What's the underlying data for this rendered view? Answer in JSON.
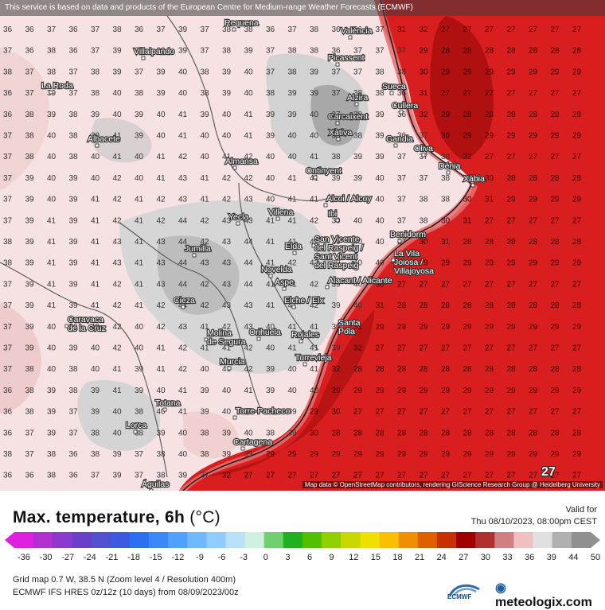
{
  "header": {
    "disclaimer": "This service is based on data and products of the European Centre for Medium-range Weather Forecasts (ECMWF)"
  },
  "map": {
    "credit": "Map data © OpenStreetMap contributors, rendering GIScience Research Group @ Heidelberg University",
    "marker_value": "27",
    "cities": [
      "Requena",
      "València",
      "Villalpando",
      "Picassent",
      "La Roda",
      "Sueca",
      "Alzira",
      "Cullera",
      "Carcaixent",
      "Albacete",
      "Xàtiva",
      "Gandia",
      "Oliva",
      "Almansa",
      "Ontinyent",
      "Dénia",
      "Xàbia",
      "Alcoi / Alcoy",
      "Ibi",
      "Yecla",
      "Villena",
      "Benidorm",
      "Jumilla",
      "Elda",
      "San Vicente del Raspeig / Sant Vicent del Raspeig",
      "La Vila Joiosa / Villajoyosa",
      "Novelda",
      "Aspe",
      "Alacant / Alicante",
      "Cieza",
      "Elche / Elx",
      "Caravaca de la Cruz",
      "Santa Pola",
      "Molina de Segura",
      "Orihuela",
      "Rojales",
      "Torrevieja",
      "Murcia",
      "Totana",
      "Torre-Pacheco",
      "Lorca",
      "Cartagena",
      "Águilas"
    ]
  },
  "legend": {
    "title": "Max. temperature, 6h",
    "unit": "(°C)",
    "valid_label": "Valid for",
    "valid_date": "Thu 08/10/2023, 08:00pm CEST",
    "scale_ticks": [
      "-36",
      "-30",
      "-27",
      "-24",
      "-21",
      "-18",
      "-15",
      "-12",
      "-9",
      "-6",
      "-3",
      "0",
      "3",
      "6",
      "9",
      "12",
      "15",
      "18",
      "21",
      "24",
      "27",
      "30",
      "33",
      "36",
      "39",
      "44",
      "50"
    ],
    "scale_colors": [
      "#e020e0",
      "#b030d0",
      "#8a3ad0",
      "#6a40c8",
      "#5050d0",
      "#3a5ae0",
      "#2a70f0",
      "#3a88f8",
      "#50a0ff",
      "#70b8ff",
      "#90ccff",
      "#b8e0f8",
      "#d0f0e0",
      "#70d070",
      "#20b020",
      "#50c000",
      "#90d000",
      "#c8d800",
      "#f0e000",
      "#f8c000",
      "#f09000",
      "#e06000",
      "#c83000",
      "#a00000",
      "#b03030",
      "#d08080",
      "#f0c0c0",
      "#e0e0e0",
      "#b0b0b0",
      "#909090"
    ]
  },
  "footer": {
    "grid_info": "Grid map 0.7 W, 38.5 N (Zoom level 4 / Resolution 400m)",
    "model_info": "ECMWF IFS HRES 0z/12z (10 days) from 08/09/2023/00z",
    "ecmwf_logo_text": "ECMWF",
    "brand": "meteologix.com"
  }
}
